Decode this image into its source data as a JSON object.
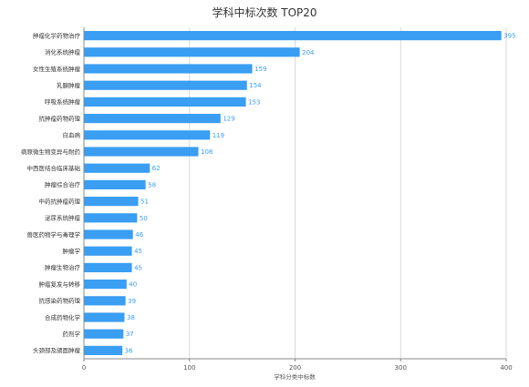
{
  "chart_data": {
    "type": "bar",
    "orientation": "horizontal",
    "title": "学科中标次数 TOP20",
    "xlabel": "学科分类中标数",
    "ylabel": "",
    "xlim": [
      0,
      400
    ],
    "x_ticks": [
      0,
      100,
      200,
      300,
      400
    ],
    "grid": true,
    "bar_color": "#3a9ef2",
    "value_label_color": "#3a9ef2",
    "categories": [
      "肿瘤化学药物治疗",
      "消化系统肿瘤",
      "女性生殖系统肿瘤",
      "乳腺肿瘤",
      "呼吸系统肿瘤",
      "抗肿瘤药物药理",
      "白血病",
      "病原微生物变异与耐药",
      "中西医结合临床基础",
      "肿瘤综合治疗",
      "中药抗肿瘤药理",
      "泌尿系统肿瘤",
      "兽医药物学与毒理学",
      "肿瘤学",
      "肿瘤生物治疗",
      "肿瘤复发与转移",
      "抗感染药物药理",
      "合成药物化学",
      "药剂学",
      "头颈部及颌面肿瘤"
    ],
    "values": [
      395,
      204,
      159,
      154,
      153,
      129,
      119,
      108,
      62,
      58,
      51,
      50,
      46,
      45,
      45,
      40,
      39,
      38,
      37,
      36
    ]
  }
}
